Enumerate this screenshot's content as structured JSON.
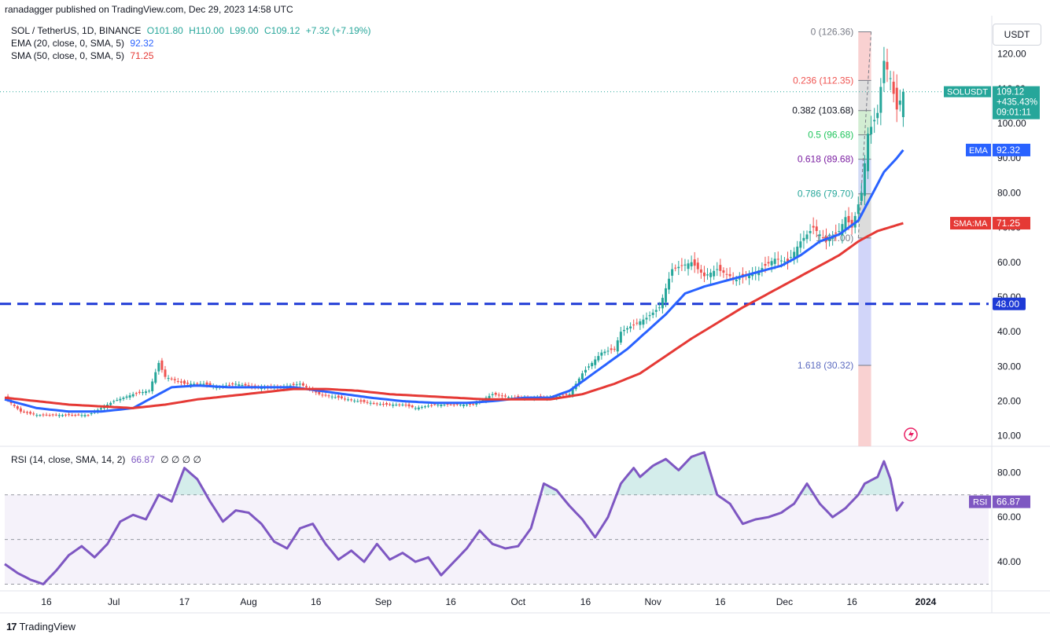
{
  "header": {
    "publisher": "ranadagger published on TradingView.com, Dec 29, 2023 14:58 UTC"
  },
  "legend": {
    "symbol": "SOL / TetherUS, 1D, BINANCE",
    "ohlc": {
      "o": "O101.80",
      "h": "H110.00",
      "l": "L99.00",
      "c": "C109.12",
      "change": "+7.32 (+7.19%)"
    },
    "ema": {
      "label": "EMA (20, close, 0, SMA, 5)",
      "value": "92.32"
    },
    "sma": {
      "label": "SMA (50, close, 0, SMA, 5)",
      "value": "71.25"
    }
  },
  "rsi_legend": {
    "label": "RSI (14, close, SMA, 14, 2)",
    "value": "66.87",
    "extras": "∅ ∅ ∅ ∅"
  },
  "currency_button": "USDT",
  "footer": {
    "brand": "TradingView"
  },
  "colors": {
    "up": "#26a69a",
    "down": "#ef5350",
    "ema": "#2962ff",
    "sma": "#e53935",
    "rsi": "#7e57c2",
    "support": "#1e3ad6",
    "price_tag": "#26a69a"
  },
  "chart_data": [
    {
      "type": "candlestick",
      "title": "SOL / TetherUS, 1D, BINANCE",
      "x_ticks": [
        "16",
        "Jul",
        "17",
        "Aug",
        "16",
        "Sep",
        "16",
        "Oct",
        "16",
        "Nov",
        "16",
        "Dec",
        "16",
        "2024"
      ],
      "y_ticks": [
        "10.00",
        "20.00",
        "30.00",
        "40.00",
        "50.00",
        "60.00",
        "70.00",
        "80.00",
        "90.00",
        "100.00",
        "110.00",
        "120.00"
      ],
      "ylim": [
        7,
        131
      ],
      "price_close_anchors": [
        [
          0,
          21
        ],
        [
          5,
          17
        ],
        [
          10,
          16
        ],
        [
          16,
          16
        ],
        [
          20,
          16
        ],
        [
          26,
          16
        ],
        [
          30,
          18
        ],
        [
          34,
          20
        ],
        [
          40,
          22
        ],
        [
          45,
          23
        ],
        [
          48,
          31
        ],
        [
          50,
          27
        ],
        [
          56,
          25
        ],
        [
          62,
          25
        ],
        [
          66,
          24
        ],
        [
          72,
          25
        ],
        [
          78,
          24
        ],
        [
          86,
          24
        ],
        [
          92,
          25
        ],
        [
          98,
          22
        ],
        [
          104,
          21
        ],
        [
          110,
          20
        ],
        [
          118,
          19
        ],
        [
          124,
          19
        ],
        [
          128,
          18
        ],
        [
          134,
          19
        ],
        [
          140,
          19
        ],
        [
          146,
          19
        ],
        [
          152,
          22
        ],
        [
          158,
          21
        ],
        [
          162,
          21
        ],
        [
          170,
          21
        ],
        [
          176,
          22
        ],
        [
          180,
          28
        ],
        [
          186,
          34
        ],
        [
          190,
          35
        ],
        [
          192,
          40
        ],
        [
          196,
          42
        ],
        [
          200,
          44
        ],
        [
          204,
          47
        ],
        [
          208,
          58
        ],
        [
          214,
          60
        ],
        [
          218,
          56
        ],
        [
          222,
          58
        ],
        [
          228,
          55
        ],
        [
          234,
          57
        ],
        [
          240,
          61
        ],
        [
          244,
          60
        ],
        [
          248,
          66
        ],
        [
          252,
          70
        ],
        [
          256,
          66
        ],
        [
          260,
          69
        ],
        [
          262,
          73
        ],
        [
          264,
          70
        ],
        [
          267,
          80
        ],
        [
          269,
          97
        ],
        [
          272,
          103
        ],
        [
          274,
          118
        ],
        [
          276,
          113
        ],
        [
          278,
          104
        ],
        [
          280,
          109.12
        ]
      ],
      "ohlc_last": {
        "open": 101.8,
        "high": 110.0,
        "low": 99.0,
        "close": 109.12,
        "change": 7.32,
        "change_pct": 7.19
      },
      "series": [
        {
          "name": "EMA (20, close, 0, SMA, 5)",
          "last": 92.32,
          "points": [
            [
              0,
              20.5
            ],
            [
              10,
              18
            ],
            [
              20,
              17
            ],
            [
              30,
              17
            ],
            [
              40,
              18
            ],
            [
              46,
              21
            ],
            [
              52,
              24
            ],
            [
              60,
              24.5
            ],
            [
              70,
              24
            ],
            [
              80,
              24
            ],
            [
              90,
              24
            ],
            [
              98,
              23
            ],
            [
              106,
              22
            ],
            [
              114,
              21
            ],
            [
              124,
              20
            ],
            [
              134,
              19.5
            ],
            [
              144,
              19.5
            ],
            [
              152,
              20
            ],
            [
              162,
              21
            ],
            [
              170,
              21
            ],
            [
              176,
              23
            ],
            [
              182,
              27
            ],
            [
              188,
              31
            ],
            [
              194,
              35
            ],
            [
              200,
              40
            ],
            [
              206,
              45
            ],
            [
              212,
              51
            ],
            [
              218,
              53
            ],
            [
              226,
              55
            ],
            [
              234,
              57
            ],
            [
              242,
              59
            ],
            [
              248,
              62
            ],
            [
              254,
              66
            ],
            [
              260,
              68
            ],
            [
              266,
              72
            ],
            [
              270,
              79
            ],
            [
              274,
              86
            ],
            [
              278,
              90
            ],
            [
              280,
              92.32
            ]
          ]
        },
        {
          "name": "SMA (50, close, 0, SMA, 5)",
          "last": 71.25,
          "points": [
            [
              0,
              21
            ],
            [
              10,
              20
            ],
            [
              20,
              19
            ],
            [
              30,
              18.5
            ],
            [
              40,
              18
            ],
            [
              50,
              19
            ],
            [
              60,
              20.5
            ],
            [
              70,
              21.5
            ],
            [
              80,
              22.5
            ],
            [
              90,
              23.5
            ],
            [
              100,
              23.5
            ],
            [
              110,
              23
            ],
            [
              120,
              22
            ],
            [
              130,
              21.5
            ],
            [
              140,
              21
            ],
            [
              150,
              20.5
            ],
            [
              160,
              20.5
            ],
            [
              170,
              20.5
            ],
            [
              180,
              22
            ],
            [
              190,
              25
            ],
            [
              198,
              28
            ],
            [
              206,
              33
            ],
            [
              214,
              38
            ],
            [
              222,
              42.5
            ],
            [
              230,
              47
            ],
            [
              238,
              51
            ],
            [
              246,
              55
            ],
            [
              254,
              59
            ],
            [
              260,
              62
            ],
            [
              266,
              66
            ],
            [
              272,
              69
            ],
            [
              280,
              71.25
            ]
          ]
        }
      ],
      "fibonacci": {
        "levels": [
          {
            "label": "0 (126.36)",
            "value": 126.36
          },
          {
            "label": "0.236 (112.35)",
            "value": 112.35
          },
          {
            "label": "0.382 (103.68)",
            "value": 103.68
          },
          {
            "label": "0.5 (96.68)",
            "value": 96.68
          },
          {
            "label": "0.618 (89.68)",
            "value": 89.68
          },
          {
            "label": "0.786 (79.70)",
            "value": 79.7
          },
          {
            "label": "1 (67.00)",
            "value": 67.0
          },
          {
            "label": "1.618 (30.32)",
            "value": 30.32
          }
        ],
        "x_start": 266,
        "x_end": 270
      },
      "support_level": {
        "value": 48.0,
        "label": "48.00"
      },
      "price_tags": [
        {
          "name": "SOLUSDT",
          "value": 109.12,
          "lines": [
            "109.12",
            "+435.43%",
            "09:01:11"
          ]
        },
        {
          "name": "EMA",
          "value": 92.32,
          "text": "92.32"
        },
        {
          "name": "SMA:MA",
          "value": 71.25,
          "text": "71.25"
        }
      ]
    },
    {
      "type": "line",
      "title": "RSI (14, close, SMA, 14, 2)",
      "y_ticks": [
        "40.00",
        "60.00",
        "80.00"
      ],
      "ylim": [
        27,
        91
      ],
      "bands": [
        30,
        50,
        70
      ],
      "last": 66.87,
      "values_anchor": [
        [
          0,
          39
        ],
        [
          4,
          35
        ],
        [
          8,
          32
        ],
        [
          12,
          30
        ],
        [
          16,
          36
        ],
        [
          20,
          43
        ],
        [
          24,
          47
        ],
        [
          28,
          42
        ],
        [
          32,
          48
        ],
        [
          36,
          58
        ],
        [
          40,
          61
        ],
        [
          44,
          59
        ],
        [
          48,
          70
        ],
        [
          52,
          67
        ],
        [
          56,
          82
        ],
        [
          60,
          77
        ],
        [
          64,
          67
        ],
        [
          68,
          58
        ],
        [
          72,
          63
        ],
        [
          76,
          62
        ],
        [
          80,
          57
        ],
        [
          84,
          49
        ],
        [
          88,
          46
        ],
        [
          92,
          55
        ],
        [
          96,
          57
        ],
        [
          100,
          48
        ],
        [
          104,
          41
        ],
        [
          108,
          45
        ],
        [
          112,
          40
        ],
        [
          116,
          48
        ],
        [
          120,
          41
        ],
        [
          124,
          44
        ],
        [
          128,
          40
        ],
        [
          132,
          42
        ],
        [
          136,
          34
        ],
        [
          140,
          40
        ],
        [
          144,
          46
        ],
        [
          148,
          54
        ],
        [
          152,
          48
        ],
        [
          156,
          46
        ],
        [
          160,
          47
        ],
        [
          164,
          55
        ],
        [
          168,
          75
        ],
        [
          172,
          72
        ],
        [
          176,
          65
        ],
        [
          180,
          59
        ],
        [
          184,
          51
        ],
        [
          188,
          60
        ],
        [
          192,
          75
        ],
        [
          196,
          82
        ],
        [
          198,
          78
        ],
        [
          202,
          83
        ],
        [
          206,
          86
        ],
        [
          210,
          81
        ],
        [
          214,
          87
        ],
        [
          218,
          89
        ],
        [
          222,
          70
        ],
        [
          226,
          66
        ],
        [
          230,
          57
        ],
        [
          234,
          59
        ],
        [
          238,
          60
        ],
        [
          242,
          62
        ],
        [
          246,
          66
        ],
        [
          250,
          75
        ],
        [
          254,
          66
        ],
        [
          258,
          60
        ],
        [
          262,
          64
        ],
        [
          266,
          70
        ],
        [
          268,
          75
        ],
        [
          272,
          78
        ],
        [
          274,
          85
        ],
        [
          276,
          77
        ],
        [
          278,
          63
        ],
        [
          280,
          66.87
        ]
      ]
    }
  ]
}
